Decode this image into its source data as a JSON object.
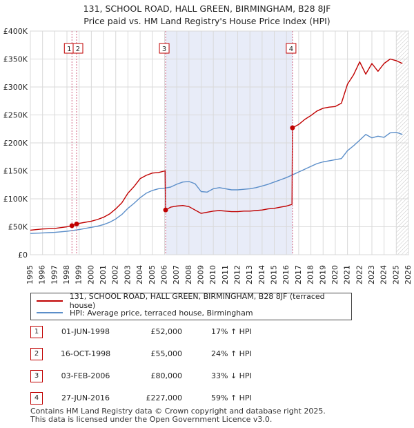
{
  "header": {
    "title_line1": "131, SCHOOL ROAD, HALL GREEN, BIRMINGHAM, B28 8JF",
    "title_line2": "Price paid vs. HM Land Registry's House Price Index (HPI)"
  },
  "colors": {
    "property": "#c00000",
    "hpi": "#5b8ec9",
    "shade": "#e8ecf8",
    "grid": "#d9d9d9",
    "marker_line": "#d06080",
    "forecast_hatch": "#888888"
  },
  "legend": {
    "property_label": "131, SCHOOL ROAD, HALL GREEN, BIRMINGHAM, B28 8JF (terraced house)",
    "hpi_label": "HPI: Average price, terraced house, Birmingham"
  },
  "transactions": [
    {
      "id": "1",
      "date": "01-JUN-1998",
      "price": "£52,000",
      "hpi": "17% ↑ HPI"
    },
    {
      "id": "2",
      "date": "16-OCT-1998",
      "price": "£55,000",
      "hpi": "24% ↑ HPI"
    },
    {
      "id": "3",
      "date": "03-FEB-2006",
      "price": "£80,000",
      "hpi": "33% ↓ HPI"
    },
    {
      "id": "4",
      "date": "27-JUN-2016",
      "price": "£227,000",
      "hpi": "59% ↑ HPI"
    }
  ],
  "footer": {
    "line1": "Contains HM Land Registry data © Crown copyright and database right 2025.",
    "line2": "This data is licensed under the Open Government Licence v3.0."
  },
  "chart_data": {
    "type": "line",
    "title": "131, SCHOOL ROAD, HALL GREEN, BIRMINGHAM, B28 8JF — Price paid vs. HM Land Registry's House Price Index (HPI)",
    "xlabel": "",
    "ylabel": "",
    "xlim": [
      1995,
      2026
    ],
    "ylim": [
      0,
      400000
    ],
    "x_ticks": [
      1995,
      1996,
      1997,
      1998,
      1999,
      2000,
      2001,
      2002,
      2003,
      2004,
      2005,
      2006,
      2007,
      2008,
      2009,
      2010,
      2011,
      2012,
      2013,
      2014,
      2015,
      2016,
      2017,
      2018,
      2019,
      2020,
      2021,
      2022,
      2023,
      2024,
      2025,
      2026
    ],
    "y_ticks": [
      0,
      50000,
      100000,
      150000,
      200000,
      250000,
      300000,
      350000,
      400000
    ],
    "y_tick_labels": [
      "£0",
      "£50K",
      "£100K",
      "£150K",
      "£200K",
      "£250K",
      "£300K",
      "£350K",
      "£400K"
    ],
    "shaded_span": [
      2006.09,
      2016.49
    ],
    "forecast_from": 2025.0,
    "series": [
      {
        "name": "131, SCHOOL ROAD, HALL GREEN, BIRMINGHAM, B28 8JF (terraced house)",
        "x": [
          1995.0,
          1995.5,
          1996.0,
          1996.5,
          1997.0,
          1997.5,
          1998.0,
          1998.41,
          1998.79,
          1999.0,
          1999.5,
          2000.0,
          2000.5,
          2001.0,
          2001.5,
          2002.0,
          2002.5,
          2003.0,
          2003.5,
          2004.0,
          2004.5,
          2005.0,
          2005.5,
          2006.05,
          2006.09,
          2006.5,
          2007.0,
          2007.5,
          2008.0,
          2008.5,
          2009.0,
          2009.5,
          2010.0,
          2010.5,
          2011.0,
          2011.5,
          2012.0,
          2012.5,
          2013.0,
          2013.5,
          2014.0,
          2014.5,
          2015.0,
          2015.5,
          2016.0,
          2016.45,
          2016.49,
          2017.0,
          2017.5,
          2018.0,
          2018.5,
          2019.0,
          2019.5,
          2020.0,
          2020.5,
          2021.0,
          2021.5,
          2022.0,
          2022.5,
          2023.0,
          2023.5,
          2024.0,
          2024.5,
          2025.0,
          2025.5
        ],
        "values": [
          44000,
          45000,
          46000,
          46500,
          47000,
          48500,
          50000,
          52000,
          55000,
          56000,
          58000,
          60000,
          63000,
          67000,
          73000,
          82000,
          93000,
          110000,
          122000,
          136000,
          142000,
          146000,
          147000,
          150000,
          80000,
          85000,
          87000,
          88000,
          86000,
          80000,
          74000,
          76000,
          78000,
          79000,
          78000,
          77000,
          77000,
          78000,
          78000,
          79000,
          80000,
          82000,
          83000,
          85000,
          87000,
          90000,
          227000,
          233000,
          242000,
          249000,
          257000,
          262000,
          264000,
          265000,
          271000,
          305000,
          322000,
          345000,
          323000,
          342000,
          328000,
          342000,
          350000,
          347000,
          342000
        ]
      },
      {
        "name": "HPI: Average price, terraced house, Birmingham",
        "x": [
          1995.0,
          1995.5,
          1996.0,
          1996.5,
          1997.0,
          1997.5,
          1998.0,
          1998.5,
          1999.0,
          1999.5,
          2000.0,
          2000.5,
          2001.0,
          2001.5,
          2002.0,
          2002.5,
          2003.0,
          2003.5,
          2004.0,
          2004.5,
          2005.0,
          2005.5,
          2006.0,
          2006.5,
          2007.0,
          2007.5,
          2008.0,
          2008.5,
          2009.0,
          2009.5,
          2010.0,
          2010.5,
          2011.0,
          2011.5,
          2012.0,
          2012.5,
          2013.0,
          2013.5,
          2014.0,
          2014.5,
          2015.0,
          2015.5,
          2016.0,
          2016.5,
          2017.0,
          2017.5,
          2018.0,
          2018.5,
          2019.0,
          2019.5,
          2020.0,
          2020.5,
          2021.0,
          2021.5,
          2022.0,
          2022.5,
          2023.0,
          2023.5,
          2024.0,
          2024.5,
          2025.0,
          2025.5
        ],
        "values": [
          38000,
          38500,
          39000,
          39500,
          40000,
          41000,
          42000,
          43500,
          45000,
          47000,
          49000,
          51000,
          54000,
          58000,
          64000,
          72000,
          83000,
          92000,
          102000,
          110000,
          115000,
          118000,
          119000,
          121000,
          126000,
          130000,
          131000,
          127000,
          113000,
          112000,
          118000,
          120000,
          118000,
          116000,
          116000,
          117000,
          118000,
          120000,
          123000,
          126000,
          130000,
          134000,
          138000,
          143000,
          148000,
          153000,
          158000,
          163000,
          166000,
          168000,
          170000,
          172000,
          186000,
          195000,
          205000,
          215000,
          209000,
          212000,
          210000,
          218000,
          219000,
          215000
        ]
      }
    ],
    "markers": [
      {
        "id": "1",
        "x": 1998.41,
        "y": 52000
      },
      {
        "id": "2",
        "x": 1998.79,
        "y": 55000
      },
      {
        "id": "3",
        "x": 2006.09,
        "y": 80000
      },
      {
        "id": "4",
        "x": 2016.49,
        "y": 227000
      }
    ]
  }
}
